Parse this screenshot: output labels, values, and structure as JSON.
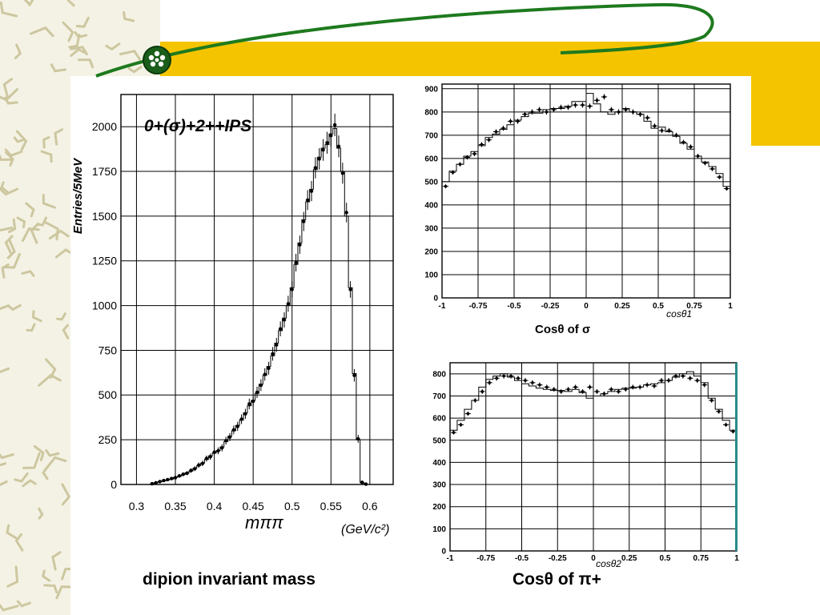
{
  "colors": {
    "banner": "#f5c400",
    "swoosh": "#1e7a1e",
    "ink": "#000000",
    "edge": "#2a8a8a"
  },
  "logo": {
    "icon": "atom-logo-icon"
  },
  "captions": {
    "mass": "dipion invariant mass",
    "cos_sigma": "Cosθ of σ",
    "cos_pi": "Cosθ of π+"
  },
  "chart_data": [
    {
      "type": "line",
      "name": "mass",
      "annotation": "0+(σ)+2++IPS",
      "ylabel": "Entries/5MeV",
      "xlabel": "mππ",
      "xunit": "(GeV/c²)",
      "xlim": [
        0.28,
        0.63
      ],
      "ylim": [
        0,
        2180
      ],
      "xticks": [
        0.3,
        0.35,
        0.4,
        0.45,
        0.5,
        0.55,
        0.6
      ],
      "xtick_labels": [
        "0.3",
        "0.35",
        "0.4",
        "0.45",
        "0.5",
        "0.55",
        "0.6"
      ],
      "yticks": [
        0,
        250,
        500,
        750,
        1000,
        1250,
        1500,
        1750,
        2000
      ],
      "ytick_labels": [
        "0",
        "250",
        "500",
        "750",
        "1000",
        "1250",
        "1500",
        "1750",
        "2000"
      ],
      "grid": true,
      "bin_width": 0.005,
      "bins_x": [
        0.32,
        0.325,
        0.33,
        0.335,
        0.34,
        0.345,
        0.35,
        0.355,
        0.36,
        0.365,
        0.37,
        0.375,
        0.38,
        0.385,
        0.39,
        0.395,
        0.4,
        0.405,
        0.41,
        0.415,
        0.42,
        0.425,
        0.43,
        0.435,
        0.44,
        0.445,
        0.45,
        0.455,
        0.46,
        0.465,
        0.47,
        0.475,
        0.48,
        0.485,
        0.49,
        0.495,
        0.5,
        0.505,
        0.51,
        0.515,
        0.52,
        0.525,
        0.53,
        0.535,
        0.54,
        0.545,
        0.55,
        0.555,
        0.56,
        0.565,
        0.57,
        0.575,
        0.58,
        0.585,
        0.59,
        0.595
      ],
      "histogram": [
        2,
        10,
        15,
        20,
        25,
        30,
        40,
        45,
        55,
        65,
        75,
        90,
        105,
        120,
        140,
        160,
        175,
        190,
        210,
        240,
        270,
        300,
        330,
        360,
        400,
        440,
        470,
        510,
        560,
        610,
        660,
        720,
        790,
        860,
        930,
        1000,
        1100,
        1230,
        1350,
        1480,
        1580,
        1650,
        1760,
        1830,
        1880,
        1900,
        1960,
        1990,
        1880,
        1750,
        1500,
        1100,
        620,
        250,
        10,
        0
      ],
      "points": [
        4,
        9,
        16,
        22,
        27,
        33,
        38,
        48,
        57,
        63,
        78,
        88,
        108,
        118,
        145,
        155,
        180,
        188,
        205,
        245,
        265,
        305,
        325,
        365,
        395,
        450,
        465,
        515,
        555,
        615,
        650,
        730,
        780,
        870,
        920,
        1010,
        1090,
        1240,
        1340,
        1470,
        1590,
        1640,
        1770,
        1820,
        1870,
        1910,
        1950,
        2010,
        1890,
        1740,
        1520,
        1090,
        610,
        255,
        12,
        2
      ]
    },
    {
      "type": "line",
      "name": "cos1",
      "xlabel": "cosθ1",
      "xlim": [
        -1,
        1
      ],
      "ylim": [
        0,
        920
      ],
      "xticks": [
        -1,
        -0.75,
        -0.5,
        -0.25,
        0,
        0.25,
        0.5,
        0.75,
        1
      ],
      "xtick_labels": [
        "-1",
        "-0.75",
        "-0.5",
        "-0.25",
        "0",
        "0.25",
        "0.5",
        "0.75",
        "1"
      ],
      "yticks": [
        0,
        100,
        200,
        300,
        400,
        500,
        600,
        700,
        800,
        900
      ],
      "ytick_labels": [
        "0",
        "100",
        "200",
        "300",
        "400",
        "500",
        "600",
        "700",
        "800",
        "900"
      ],
      "grid": true,
      "bin_width": 0.05,
      "bins_x": [
        -0.975,
        -0.925,
        -0.875,
        -0.825,
        -0.775,
        -0.725,
        -0.675,
        -0.625,
        -0.575,
        -0.525,
        -0.475,
        -0.425,
        -0.375,
        -0.325,
        -0.275,
        -0.225,
        -0.175,
        -0.125,
        -0.075,
        -0.025,
        0.025,
        0.075,
        0.125,
        0.175,
        0.225,
        0.275,
        0.325,
        0.375,
        0.425,
        0.475,
        0.525,
        0.575,
        0.625,
        0.675,
        0.725,
        0.775,
        0.825,
        0.875,
        0.925,
        0.975
      ],
      "histogram": [
        500,
        545,
        575,
        610,
        630,
        655,
        690,
        705,
        725,
        745,
        765,
        780,
        795,
        795,
        810,
        815,
        815,
        825,
        845,
        845,
        880,
        835,
        800,
        790,
        800,
        815,
        800,
        790,
        760,
        730,
        735,
        715,
        695,
        665,
        640,
        610,
        585,
        565,
        535,
        480
      ],
      "points": [
        480,
        540,
        575,
        605,
        620,
        660,
        680,
        715,
        730,
        760,
        760,
        790,
        800,
        810,
        800,
        810,
        820,
        820,
        830,
        830,
        825,
        850,
        865,
        810,
        800,
        810,
        800,
        790,
        775,
        740,
        720,
        720,
        700,
        670,
        650,
        610,
        580,
        555,
        520,
        470
      ]
    },
    {
      "type": "line",
      "name": "cos2",
      "xlabel": "cosθ2",
      "xlim": [
        -1,
        1
      ],
      "ylim": [
        0,
        850
      ],
      "xticks": [
        -1,
        -0.75,
        -0.5,
        -0.25,
        0,
        0.25,
        0.5,
        0.75,
        1
      ],
      "xtick_labels": [
        "-1",
        "-0.75",
        "-0.5",
        "-0.25",
        "0",
        "0.25",
        "0.5",
        "0.75",
        "1"
      ],
      "yticks": [
        0,
        100,
        200,
        300,
        400,
        500,
        600,
        700,
        800
      ],
      "ytick_labels": [
        "0",
        "100",
        "200",
        "300",
        "400",
        "500",
        "600",
        "700",
        "800"
      ],
      "grid": true,
      "bin_width": 0.05,
      "bins_x": [
        -0.975,
        -0.925,
        -0.875,
        -0.825,
        -0.775,
        -0.725,
        -0.675,
        -0.625,
        -0.575,
        -0.525,
        -0.475,
        -0.425,
        -0.375,
        -0.325,
        -0.275,
        -0.225,
        -0.175,
        -0.125,
        -0.075,
        -0.025,
        0.025,
        0.075,
        0.125,
        0.175,
        0.225,
        0.275,
        0.325,
        0.375,
        0.425,
        0.475,
        0.525,
        0.575,
        0.625,
        0.675,
        0.725,
        0.775,
        0.825,
        0.875,
        0.925,
        0.975
      ],
      "histogram": [
        545,
        590,
        640,
        680,
        740,
        775,
        790,
        800,
        785,
        770,
        755,
        745,
        735,
        730,
        725,
        725,
        720,
        730,
        715,
        690,
        700,
        710,
        720,
        730,
        735,
        735,
        740,
        750,
        755,
        760,
        770,
        785,
        800,
        810,
        790,
        760,
        690,
        640,
        590,
        545
      ],
      "points": [
        535,
        570,
        620,
        680,
        720,
        760,
        780,
        790,
        790,
        780,
        770,
        760,
        750,
        740,
        730,
        720,
        730,
        740,
        720,
        740,
        720,
        710,
        730,
        720,
        730,
        740,
        740,
        750,
        745,
        770,
        770,
        790,
        790,
        780,
        770,
        750,
        680,
        630,
        570,
        540
      ]
    }
  ]
}
